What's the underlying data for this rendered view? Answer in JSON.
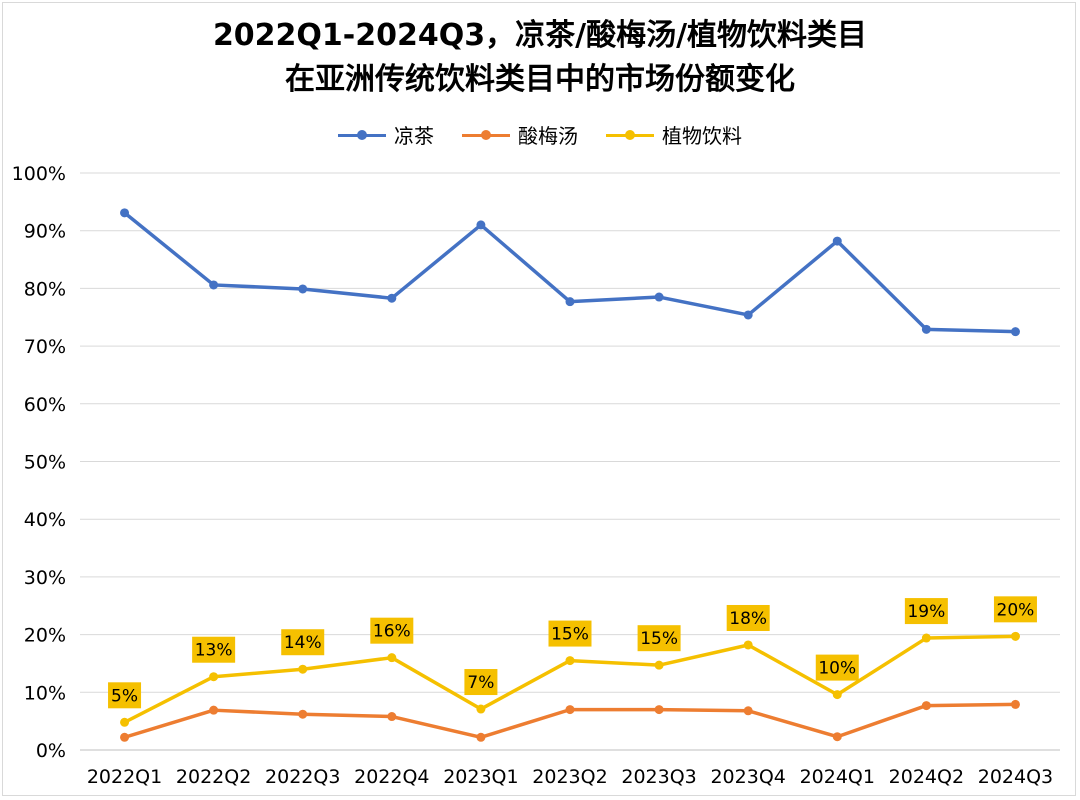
{
  "chart_data": {
    "type": "line",
    "title_lines": [
      "2022Q1-2024Q3，凉茶/酸梅汤/植物饮料类目",
      "在亚洲传统饮料类目中的市场份额变化"
    ],
    "categories": [
      "2022Q1",
      "2022Q2",
      "2022Q3",
      "2022Q4",
      "2023Q1",
      "2023Q2",
      "2023Q3",
      "2023Q4",
      "2024Q1",
      "2024Q2",
      "2024Q3"
    ],
    "y_ticks": [
      "0%",
      "10%",
      "20%",
      "30%",
      "40%",
      "50%",
      "60%",
      "70%",
      "80%",
      "90%",
      "100%"
    ],
    "ylim": [
      0,
      100
    ],
    "y_unit": "%",
    "grid": true,
    "legend_position": "top",
    "series": [
      {
        "name": "凉茶",
        "color": "#4472C4",
        "values": [
          93.1,
          80.6,
          79.9,
          78.3,
          91.0,
          77.7,
          78.5,
          75.4,
          88.2,
          72.9,
          72.5
        ]
      },
      {
        "name": "酸梅汤",
        "color": "#ED7D31",
        "values": [
          2.2,
          6.9,
          6.2,
          5.8,
          2.2,
          7.0,
          7.0,
          6.8,
          2.3,
          7.7,
          7.9
        ]
      },
      {
        "name": "植物饮料",
        "color": "#F5C000",
        "values": [
          4.8,
          12.7,
          14.0,
          16.0,
          7.1,
          15.5,
          14.7,
          18.2,
          9.6,
          19.4,
          19.7
        ],
        "data_labels": [
          "5%",
          "13%",
          "14%",
          "16%",
          "7%",
          "15%",
          "15%",
          "18%",
          "10%",
          "19%",
          "20%"
        ],
        "label_box_color": "#F5C000"
      }
    ]
  }
}
